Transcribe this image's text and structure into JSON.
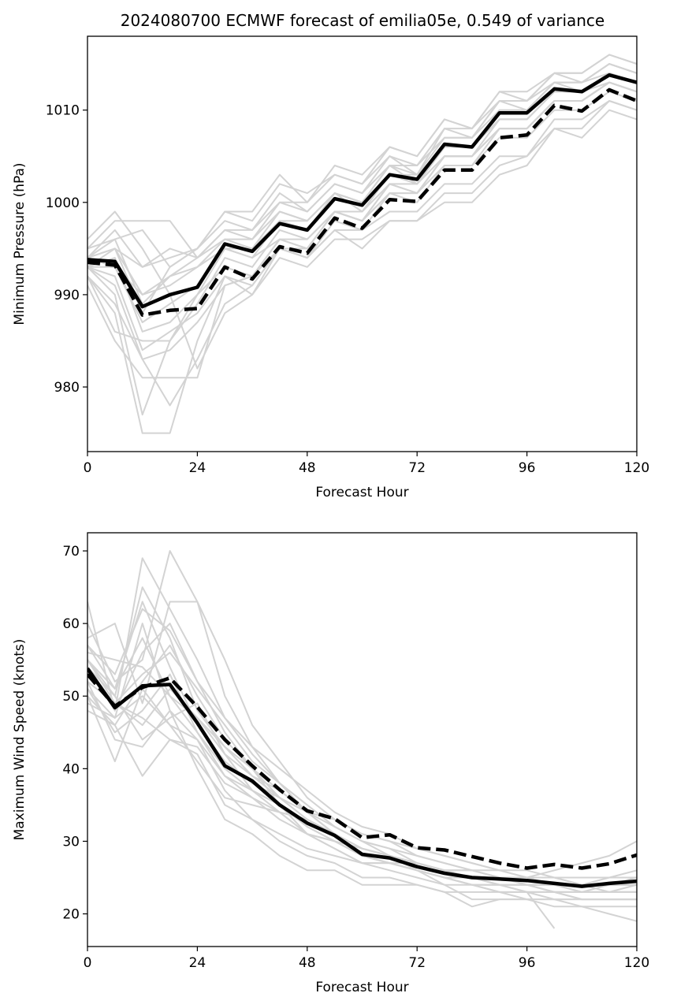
{
  "figure": {
    "title": "2024080700 ECMWF forecast of emilia05e, 0.549 of variance"
  },
  "colors": {
    "ensemble": "#d3d3d3",
    "mean": "#000000",
    "axis": "#000000",
    "background": "#ffffff"
  },
  "chart_data": [
    {
      "type": "line",
      "xlabel": "Forecast Hour",
      "ylabel": "Minimum Pressure (hPa)",
      "xlim": [
        0,
        120
      ],
      "ylim": [
        973,
        1018
      ],
      "xticks": [
        0,
        24,
        48,
        72,
        96,
        120
      ],
      "yticks": [
        980,
        990,
        1000,
        1010
      ],
      "grid": false,
      "legend": "none",
      "x": [
        0,
        6,
        12,
        18,
        24,
        30,
        36,
        42,
        48,
        54,
        60,
        66,
        72,
        78,
        84,
        90,
        96,
        102,
        108,
        114,
        120
      ],
      "series": [
        {
          "style": "solid",
          "values": [
            993.8,
            993.6,
            988.7,
            990.0,
            990.8,
            995.5,
            994.7,
            997.7,
            997.0,
            1000.4,
            999.7,
            1003.0,
            1002.5,
            1006.3,
            1006.0,
            1009.7,
            1009.7,
            1012.3,
            1012.0,
            1013.8,
            1013.0
          ]
        },
        {
          "style": "dashed",
          "values": [
            993.5,
            993.2,
            987.8,
            988.3,
            988.5,
            993.0,
            991.7,
            995.2,
            994.5,
            998.3,
            997.2,
            1000.3,
            1000.1,
            1003.5,
            1003.5,
            1007.0,
            1007.3,
            1010.5,
            1009.9,
            1012.2,
            1011.0
          ]
        }
      ],
      "members": [
        [
          995,
          996,
          989,
          992,
          994,
          997,
          996,
          999,
          998,
          1001,
          1000,
          1004,
          1003,
          1007,
          1007,
          1010,
          1010,
          1013,
          1013,
          1015,
          1014
        ],
        [
          994,
          997,
          993,
          994,
          995,
          998,
          997,
          1000,
          999,
          1002,
          1001,
          1005,
          1004,
          1008,
          1008,
          1011,
          1011,
          1014,
          1014,
          1016,
          1015
        ],
        [
          993,
          990,
          977,
          985,
          990,
          995,
          994,
          996,
          996,
          999,
          998,
          1001,
          1001,
          1005,
          1005,
          1008,
          1008,
          1011,
          1011,
          1013,
          1012
        ],
        [
          992,
          988,
          975,
          975,
          985,
          992,
          991,
          995,
          994,
          998,
          997,
          1001,
          1000,
          1004,
          1004,
          1008,
          1008,
          1011,
          1011,
          1013,
          1012
        ],
        [
          994,
          995,
          988,
          993,
          995,
          999,
          999,
          1003,
          1000,
          1004,
          1003,
          1006,
          1005,
          1009,
          1008,
          1012,
          1011,
          1014,
          1013,
          1015,
          1014
        ],
        [
          996,
          999,
          995,
          990,
          982,
          988,
          990,
          995,
          995,
          999,
          998,
          1002,
          1001,
          1005,
          1005,
          1009,
          1009,
          1012,
          1012,
          1014,
          1013
        ],
        [
          991,
          985,
          981,
          981,
          981,
          991,
          992,
          995,
          994,
          997,
          995,
          998,
          998,
          1001,
          1001,
          1004,
          1005,
          1008,
          1008,
          1011,
          1010
        ],
        [
          993,
          992,
          984,
          986,
          988,
          992,
          990,
          994,
          993,
          996,
          996,
          998,
          998,
          1000,
          1000,
          1003,
          1004,
          1008,
          1007,
          1010,
          1009
        ],
        [
          994,
          995,
          993,
          995,
          994,
          996,
          996,
          1000,
          1000,
          1003,
          1002,
          1005,
          1003,
          1008,
          1007,
          1011,
          1011,
          1013,
          1012,
          1014,
          1013
        ],
        [
          993,
          993,
          990,
          992,
          993,
          995,
          994,
          998,
          997,
          1001,
          999,
          1003,
          1002,
          1006,
          1006,
          1009,
          1009,
          1012,
          1012,
          1013,
          1012
        ],
        [
          993,
          994,
          986,
          987,
          990,
          993,
          992,
          996,
          995,
          999,
          998,
          1001,
          1001,
          1004,
          1004,
          1007,
          1007,
          1010,
          1010,
          1012,
          1011
        ],
        [
          993,
          991,
          983,
          978,
          983,
          989,
          991,
          995,
          994,
          997,
          997,
          999,
          999,
          1002,
          1002,
          1005,
          1005,
          1009,
          1009,
          1011,
          1010
        ],
        [
          994,
          996,
          997,
          993,
          995,
          999,
          998,
          1002,
          1001,
          1003,
          1002,
          1006,
          1005,
          1009,
          1008,
          1012,
          1012,
          1014,
          1014,
          1016,
          1015
        ],
        [
          995,
          998,
          998,
          998,
          994,
          997,
          997,
          1001,
          999,
          1002,
          1001,
          1004,
          1004,
          1007,
          1007,
          1011,
          1010,
          1013,
          1013,
          1015,
          1014
        ],
        [
          992,
          989,
          983,
          984,
          987,
          991,
          992,
          996,
          995,
          999,
          998,
          1002,
          1001,
          1005,
          1005,
          1008,
          1008,
          1011,
          1011,
          1013,
          1012
        ],
        [
          994,
          993,
          987,
          989,
          991,
          995,
          995,
          998,
          998,
          1001,
          1000,
          1003,
          1003,
          1006,
          1006,
          1010,
          1010,
          1013,
          1013,
          1014,
          1013
        ],
        [
          993,
          995,
          990,
          991,
          993,
          996,
          995,
          999,
          998,
          1001,
          1000,
          1004,
          1002,
          1006,
          1006,
          1009,
          1009,
          1012,
          1012,
          1014,
          1013
        ],
        [
          992,
          986,
          985,
          985,
          989,
          994,
          993,
          997,
          996,
          999,
          999,
          1002,
          1002,
          1005,
          1005,
          1008,
          1008,
          1011,
          1011,
          1013,
          1012
        ]
      ]
    },
    {
      "type": "line",
      "xlabel": "Forecast Hour",
      "ylabel": "Maximum Wind Speed (knots)",
      "xlim": [
        0,
        120
      ],
      "ylim": [
        15.5,
        72.5
      ],
      "xticks": [
        0,
        24,
        48,
        72,
        96,
        120
      ],
      "yticks": [
        20,
        30,
        40,
        50,
        60,
        70
      ],
      "grid": false,
      "legend": "none",
      "x": [
        0,
        6,
        12,
        18,
        24,
        30,
        36,
        42,
        48,
        54,
        60,
        66,
        72,
        78,
        84,
        90,
        96,
        102,
        108,
        114,
        120
      ],
      "series": [
        {
          "style": "solid",
          "values": [
            53.8,
            48.4,
            51.4,
            51.6,
            46.3,
            40.4,
            38.3,
            35.0,
            32.5,
            30.8,
            28.2,
            27.7,
            26.5,
            25.6,
            25.0,
            24.8,
            24.6,
            24.2,
            23.8,
            24.2,
            24.5
          ]
        },
        {
          "style": "dashed",
          "values": [
            53.0,
            48.6,
            51.2,
            52.5,
            48.5,
            44.0,
            40.4,
            37.1,
            34.2,
            33.1,
            30.5,
            30.9,
            29.1,
            28.8,
            27.9,
            27.0,
            26.3,
            26.8,
            26.3,
            26.9,
            28.1
          ]
        }
      ],
      "members": [
        [
          63,
          48,
          69,
          62,
          55,
          47,
          42,
          38,
          35,
          32,
          30,
          28,
          27,
          26,
          25,
          24,
          24,
          23,
          23,
          23,
          23
        ],
        [
          60,
          52,
          55,
          70,
          63,
          50,
          43,
          38,
          34,
          31,
          29,
          28,
          27,
          26,
          25,
          25,
          24,
          24,
          23,
          24,
          24
        ],
        [
          55,
          50,
          65,
          58,
          48,
          43,
          40,
          36,
          33,
          31,
          29,
          28,
          26,
          25,
          24,
          23,
          23,
          22,
          22,
          22,
          22
        ],
        [
          58,
          60,
          49,
          63,
          63,
          55,
          46,
          41,
          36,
          33,
          31,
          30,
          28,
          27,
          26,
          25,
          25,
          24,
          24,
          23,
          23
        ],
        [
          52,
          44,
          43,
          48,
          44,
          37,
          33,
          31,
          29,
          28,
          27,
          27,
          27,
          26,
          26,
          25,
          25,
          26,
          27,
          28,
          30
        ],
        [
          50,
          41,
          51,
          46,
          41,
          36,
          35,
          34,
          33,
          31,
          29,
          28,
          26,
          24,
          22,
          22,
          22,
          22,
          22,
          22,
          22
        ],
        [
          54,
          48,
          56,
          60,
          52,
          45,
          40,
          35,
          31,
          29,
          27,
          26,
          25,
          24,
          24,
          23,
          23,
          23,
          22,
          22,
          22
        ],
        [
          48,
          46,
          39,
          44,
          42,
          35,
          33,
          30,
          28,
          27,
          25,
          25,
          24,
          23,
          23,
          23,
          22,
          22,
          21,
          21,
          21
        ],
        [
          56,
          55,
          54,
          50,
          47,
          42,
          37,
          34,
          31,
          30,
          29,
          28,
          27,
          26,
          25,
          24,
          24,
          23,
          23,
          23,
          23
        ],
        [
          51,
          45,
          48,
          53,
          45,
          39,
          37,
          35,
          32,
          30,
          28,
          27,
          26,
          25,
          25,
          24,
          23,
          23,
          22,
          22,
          22
        ],
        [
          49,
          47,
          60,
          48,
          40,
          33,
          31,
          28,
          26,
          26,
          24,
          24,
          24,
          23,
          21,
          22,
          22,
          21,
          21,
          20,
          19
        ],
        [
          57,
          51,
          63,
          54,
          46,
          41,
          38,
          36,
          34,
          33,
          31,
          30,
          29,
          28,
          27,
          26,
          25,
          25,
          24,
          24,
          24
        ],
        [
          53,
          49,
          47,
          44,
          43,
          38,
          36,
          33,
          31,
          29,
          27,
          27,
          26,
          25,
          25,
          24,
          23,
          18,
          null,
          null,
          null
        ],
        [
          55,
          51,
          58,
          50,
          45,
          40,
          37,
          35,
          32,
          30,
          28,
          27,
          26,
          25,
          24,
          24,
          24,
          23,
          23,
          23,
          23
        ],
        [
          50,
          46,
          52,
          57,
          50,
          44,
          40,
          37,
          34,
          32,
          30,
          29,
          28,
          27,
          26,
          26,
          25,
          25,
          24,
          25,
          26
        ],
        [
          54,
          50,
          44,
          47,
          49,
          42,
          39,
          36,
          33,
          31,
          29,
          28,
          27,
          26,
          25,
          25,
          24,
          24,
          24,
          24,
          24
        ],
        [
          52,
          49,
          53,
          56,
          51,
          46,
          41,
          38,
          35,
          32,
          30,
          29,
          27,
          26,
          26,
          25,
          25,
          24,
          24,
          24,
          25
        ],
        [
          57,
          53,
          62,
          59,
          52,
          47,
          43,
          40,
          37,
          34,
          32,
          31,
          29,
          28,
          27,
          26,
          26,
          25,
          25,
          25,
          25
        ],
        [
          51,
          47,
          50,
          46,
          44,
          39,
          36,
          34,
          31,
          30,
          28,
          27,
          26,
          25,
          24,
          24,
          23,
          23,
          23,
          23,
          23
        ],
        [
          55,
          49,
          46,
          51,
          47,
          43,
          39,
          37,
          34,
          31,
          29,
          28,
          27,
          26,
          25,
          25,
          24,
          24,
          23,
          23,
          24
        ]
      ]
    }
  ]
}
